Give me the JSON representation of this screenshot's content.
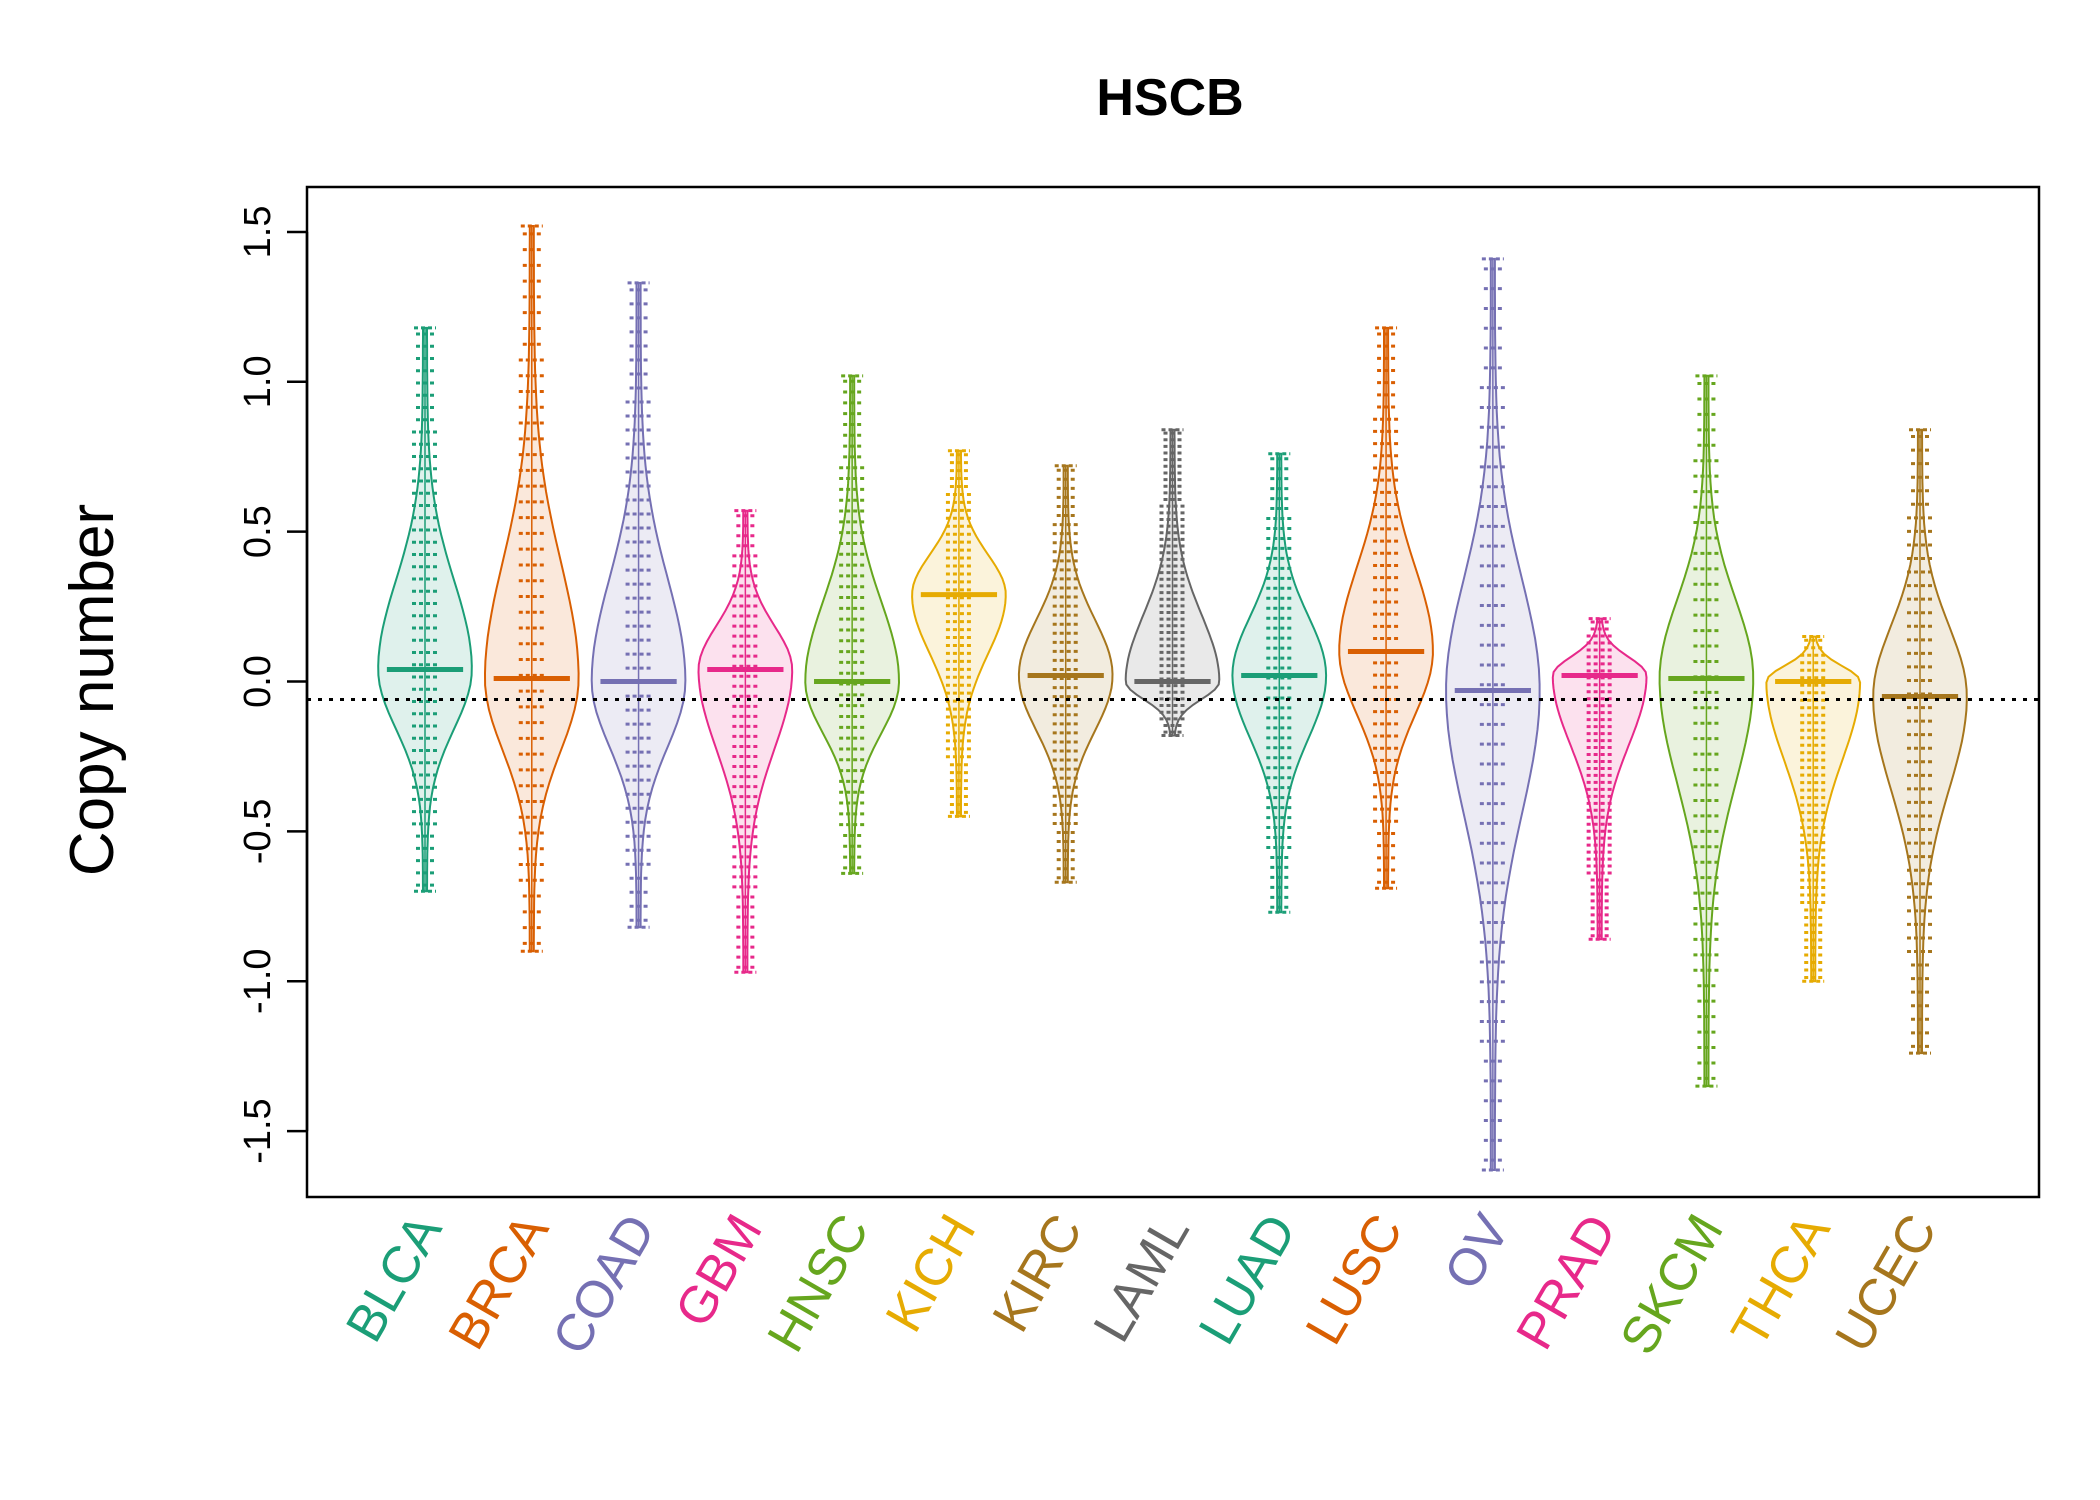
{
  "chart_data": {
    "type": "beanplot",
    "title": "HSCB",
    "xlabel": "",
    "ylabel": "Copy number",
    "ylim": [
      -1.72,
      1.65
    ],
    "yticks": [
      -1.5,
      -1.0,
      -0.5,
      0.0,
      0.5,
      1.0,
      1.5
    ],
    "ytick_labels": [
      "-1.5",
      "-1.0",
      "-0.5",
      "0.0",
      "0.5",
      "1.0",
      "1.5"
    ],
    "reference_line": -0.06,
    "grid": false,
    "legend": "none",
    "categories": [
      "BLCA",
      "BRCA",
      "COAD",
      "GBM",
      "HNSC",
      "KICH",
      "KIRC",
      "LAML",
      "LUAD",
      "LUSC",
      "OV",
      "PRAD",
      "SKCM",
      "THCA",
      "UCEC"
    ],
    "colors": [
      "#1b9e77",
      "#d95f02",
      "#7570b3",
      "#e7298a",
      "#66a61e",
      "#e6ab02",
      "#a6761d",
      "#666666",
      "#1b9e77",
      "#d95f02",
      "#7570b3",
      "#e7298a",
      "#66a61e",
      "#e6ab02",
      "#a6761d"
    ],
    "series": [
      {
        "category": "BLCA",
        "mean": 0.04,
        "min": -0.7,
        "max": 1.18
      },
      {
        "category": "BRCA",
        "mean": 0.01,
        "min": -0.9,
        "max": 1.52
      },
      {
        "category": "COAD",
        "mean": 0.0,
        "min": -0.82,
        "max": 1.33
      },
      {
        "category": "GBM",
        "mean": 0.04,
        "min": -0.97,
        "max": 0.57
      },
      {
        "category": "HNSC",
        "mean": 0.0,
        "min": -0.64,
        "max": 1.02
      },
      {
        "category": "KICH",
        "mean": 0.29,
        "min": -0.45,
        "max": 0.77
      },
      {
        "category": "KIRC",
        "mean": 0.02,
        "min": -0.67,
        "max": 0.72
      },
      {
        "category": "LAML",
        "mean": 0.0,
        "min": -0.18,
        "max": 0.84
      },
      {
        "category": "LUAD",
        "mean": 0.02,
        "min": -0.77,
        "max": 0.76
      },
      {
        "category": "LUSC",
        "mean": 0.1,
        "min": -0.69,
        "max": 1.18
      },
      {
        "category": "OV",
        "mean": -0.03,
        "min": -1.63,
        "max": 1.41
      },
      {
        "category": "PRAD",
        "mean": 0.02,
        "min": -0.86,
        "max": 0.21
      },
      {
        "category": "SKCM",
        "mean": 0.01,
        "min": -1.35,
        "max": 1.02
      },
      {
        "category": "THCA",
        "mean": 0.0,
        "min": -1.0,
        "max": 0.15
      },
      {
        "category": "UCEC",
        "mean": -0.05,
        "min": -1.24,
        "max": 0.84
      }
    ]
  }
}
